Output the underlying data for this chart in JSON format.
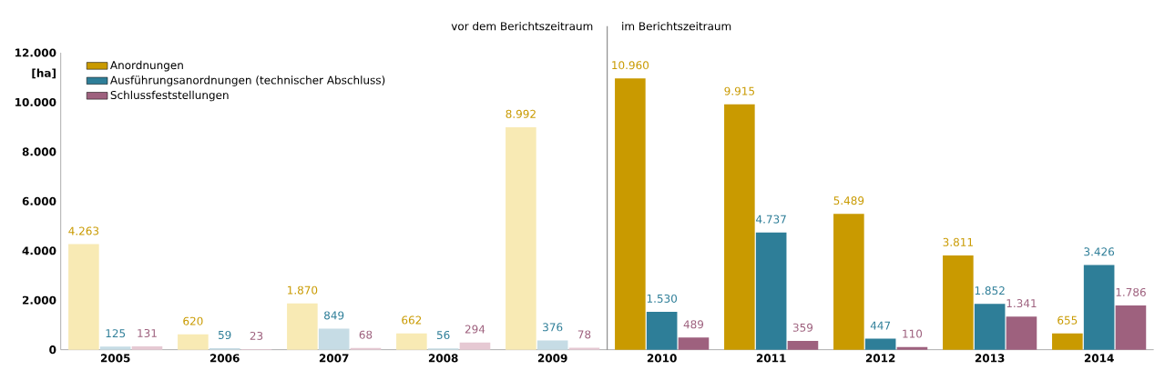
{
  "chart_data": {
    "type": "bar",
    "ylabel": "[ha]",
    "categories": [
      "2005",
      "2006",
      "2007",
      "2008",
      "2009",
      "2010",
      "2011",
      "2012",
      "2013",
      "2014"
    ],
    "series": [
      {
        "name": "Anordnungen",
        "color": "#c99a00",
        "colors": [
          "#f8eab4",
          "#f8eab4",
          "#f8eab4",
          "#f8eab4",
          "#f8eab4",
          "#c99a00",
          "#c99a00",
          "#c99a00",
          "#c99a00",
          "#c99a00"
        ],
        "values": [
          4263,
          620,
          1870,
          662,
          8992,
          10960,
          9915,
          5489,
          3811,
          655
        ],
        "value_labels": [
          "4.263",
          "620",
          "1.870",
          "662",
          "8.992",
          "10.960",
          "9.915",
          "5.489",
          "3.811",
          "655"
        ]
      },
      {
        "name": "Ausführungsanordnungen (technischer Abschluss)",
        "color": "#2e7e98",
        "colors": [
          "#c6dce5",
          "#c6dce5",
          "#c6dce5",
          "#c6dce5",
          "#c6dce5",
          "#2e7e98",
          "#2e7e98",
          "#2e7e98",
          "#2e7e98",
          "#2e7e98"
        ],
        "values": [
          125,
          59,
          849,
          56,
          376,
          1530,
          4737,
          447,
          1852,
          3426
        ],
        "value_labels": [
          "125",
          "59",
          "849",
          "56",
          "376",
          "1.530",
          "4.737",
          "447",
          "1.852",
          "3.426"
        ]
      },
      {
        "name": "Schlussfeststellungen",
        "color": "#9e617e",
        "colors": [
          "#e6c9d3",
          "#e6c9d3",
          "#e6c9d3",
          "#e6c9d3",
          "#e6c9d3",
          "#9e617e",
          "#9e617e",
          "#9e617e",
          "#9e617e",
          "#9e617e"
        ],
        "values": [
          131,
          23,
          68,
          294,
          78,
          489,
          359,
          110,
          1341,
          1786
        ],
        "value_labels": [
          "131",
          "23",
          "68",
          "294",
          "78",
          "489",
          "359",
          "110",
          "1.341",
          "1.786"
        ]
      }
    ],
    "ylim": [
      0,
      12000
    ],
    "yticks": [
      {
        "value": 0,
        "label": "0"
      },
      {
        "value": 2000,
        "label": "2.000"
      },
      {
        "value": 4000,
        "label": "4.000"
      },
      {
        "value": 6000,
        "label": "6.000"
      },
      {
        "value": 8000,
        "label": "8.000"
      },
      {
        "value": 10000,
        "label": "10.000"
      },
      {
        "value": 12000,
        "label": "12.000"
      }
    ],
    "annotations": [
      "vor dem Berichtszeitraum",
      "im Berichtszeitraum"
    ],
    "legend": "top left",
    "grid": false
  }
}
